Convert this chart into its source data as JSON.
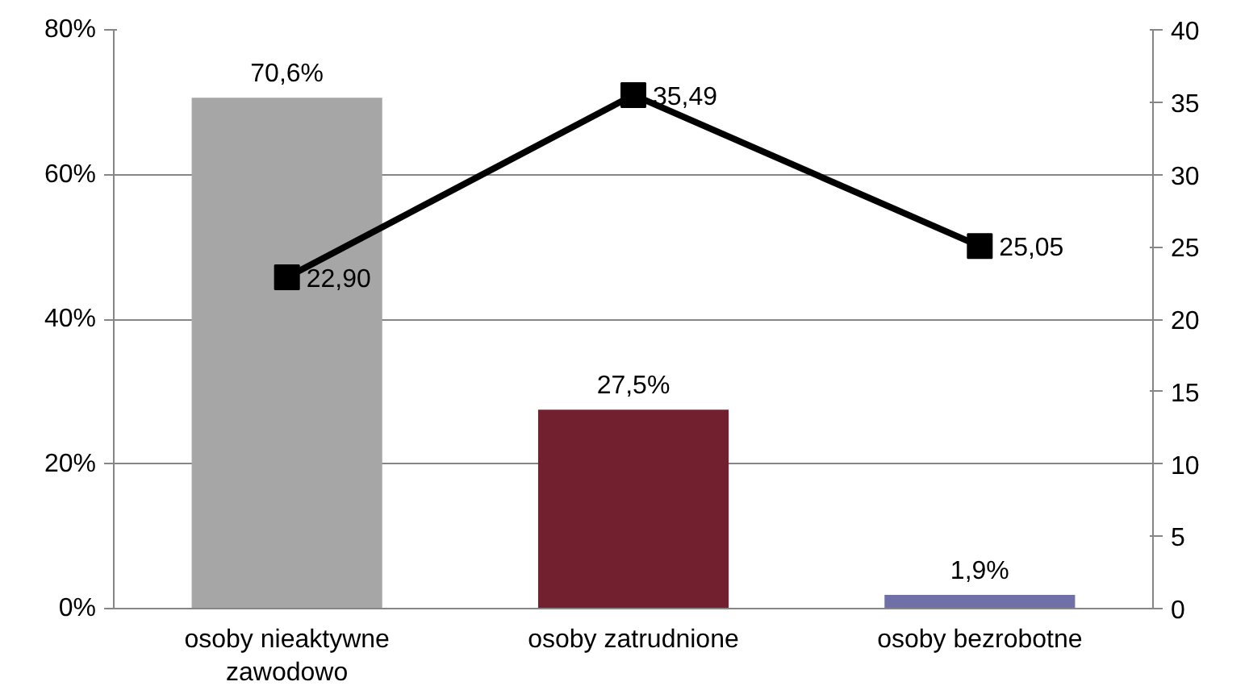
{
  "chart_data": {
    "type": "bar",
    "categories": [
      "osoby nieaktywne zawodowo",
      "osoby zatrudnione",
      "osoby bezrobotne"
    ],
    "ylim": [
      0,
      80
    ],
    "yticks": [
      {
        "value": 0,
        "label": "0%"
      },
      {
        "value": 20,
        "label": "20%"
      },
      {
        "value": 40,
        "label": "40%"
      },
      {
        "value": 60,
        "label": "60%"
      },
      {
        "value": 80,
        "label": "80%"
      }
    ],
    "y2lim": [
      0,
      40
    ],
    "y2ticks": [
      0,
      5,
      10,
      15,
      20,
      25,
      30,
      35,
      40
    ],
    "grid": "y",
    "series": [
      {
        "colors": [
          "#a6a6a6",
          "#722030",
          "#7070a8"
        ],
        "values": [
          70.6,
          27.5,
          1.9
        ],
        "value_labels": [
          "70,6%",
          "27,5%",
          "1,9%"
        ]
      },
      {
        "type": "line",
        "axis": "y2",
        "color": "#000000",
        "marker": "square",
        "line_style": "solid",
        "values": [
          22.9,
          35.49,
          25.05
        ],
        "value_labels": [
          "22,90",
          "35,49",
          "25,05"
        ]
      }
    ]
  }
}
